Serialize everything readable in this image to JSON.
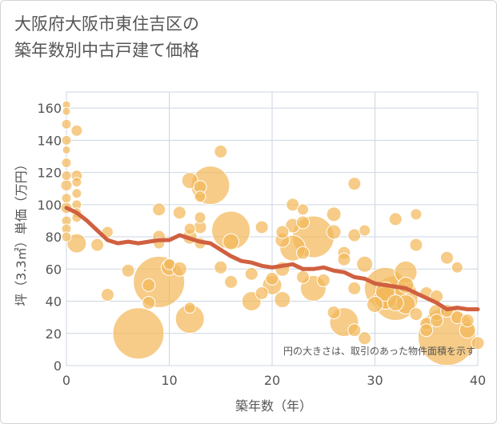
{
  "title": {
    "line1": "大阪府大阪市東住吉区の",
    "line2": "築年数別中古戸建て価格"
  },
  "note": "円の大きさは、取引のあった物件面積を示す",
  "colors": {
    "bubble_fill": "#f2b85a",
    "bubble_stroke": "#ffffff",
    "trend_line": "#d06040",
    "grid": "#cdd6e0",
    "axis_text": "#555555"
  },
  "chart_data": {
    "type": "scatter",
    "xlabel": "築年数（年）",
    "ylabel": "坪（3.3㎡）単価（万円）",
    "xlim": [
      0,
      40
    ],
    "ylim": [
      0,
      170
    ],
    "x_ticks": [
      0,
      10,
      20,
      30,
      40
    ],
    "y_ticks": [
      0,
      20,
      40,
      60,
      80,
      100,
      120,
      140,
      160
    ],
    "grid": true,
    "bubbles": [
      {
        "x": 0,
        "y": 162,
        "s": 5
      },
      {
        "x": 0,
        "y": 158,
        "s": 5
      },
      {
        "x": 0,
        "y": 150,
        "s": 6
      },
      {
        "x": 0,
        "y": 140,
        "s": 6
      },
      {
        "x": 0,
        "y": 134,
        "s": 5
      },
      {
        "x": 0,
        "y": 126,
        "s": 6
      },
      {
        "x": 0,
        "y": 118,
        "s": 6
      },
      {
        "x": 0,
        "y": 112,
        "s": 7
      },
      {
        "x": 0,
        "y": 104,
        "s": 6
      },
      {
        "x": 0,
        "y": 98,
        "s": 7
      },
      {
        "x": 0,
        "y": 90,
        "s": 6
      },
      {
        "x": 0,
        "y": 85,
        "s": 6
      },
      {
        "x": 0,
        "y": 80,
        "s": 6
      },
      {
        "x": 1,
        "y": 146,
        "s": 7
      },
      {
        "x": 1,
        "y": 118,
        "s": 7
      },
      {
        "x": 1,
        "y": 114,
        "s": 6
      },
      {
        "x": 1,
        "y": 107,
        "s": 6
      },
      {
        "x": 1,
        "y": 100,
        "s": 6
      },
      {
        "x": 1,
        "y": 95,
        "s": 6
      },
      {
        "x": 1,
        "y": 92,
        "s": 6
      },
      {
        "x": 1,
        "y": 76,
        "s": 12
      },
      {
        "x": 3,
        "y": 75,
        "s": 8
      },
      {
        "x": 4,
        "y": 83,
        "s": 7
      },
      {
        "x": 4,
        "y": 44,
        "s": 8
      },
      {
        "x": 6,
        "y": 59,
        "s": 8
      },
      {
        "x": 7,
        "y": 20,
        "s": 32
      },
      {
        "x": 8,
        "y": 50,
        "s": 8
      },
      {
        "x": 8,
        "y": 39,
        "s": 8
      },
      {
        "x": 9,
        "y": 97,
        "s": 8
      },
      {
        "x": 9,
        "y": 80,
        "s": 8
      },
      {
        "x": 9,
        "y": 76,
        "s": 7
      },
      {
        "x": 9,
        "y": 52,
        "s": 32
      },
      {
        "x": 10,
        "y": 61,
        "s": 10
      },
      {
        "x": 10,
        "y": 63,
        "s": 7
      },
      {
        "x": 11,
        "y": 95,
        "s": 8
      },
      {
        "x": 11,
        "y": 60,
        "s": 9
      },
      {
        "x": 12,
        "y": 115,
        "s": 10
      },
      {
        "x": 12,
        "y": 85,
        "s": 7
      },
      {
        "x": 12,
        "y": 80,
        "s": 9
      },
      {
        "x": 12,
        "y": 36,
        "s": 7
      },
      {
        "x": 12,
        "y": 29,
        "s": 18
      },
      {
        "x": 13,
        "y": 111,
        "s": 8
      },
      {
        "x": 13,
        "y": 105,
        "s": 7
      },
      {
        "x": 13,
        "y": 92,
        "s": 7
      },
      {
        "x": 13,
        "y": 86,
        "s": 8
      },
      {
        "x": 13,
        "y": 76,
        "s": 7
      },
      {
        "x": 14,
        "y": 112,
        "s": 24
      },
      {
        "x": 15,
        "y": 133,
        "s": 8
      },
      {
        "x": 15,
        "y": 61,
        "s": 8
      },
      {
        "x": 16,
        "y": 84,
        "s": 24
      },
      {
        "x": 16,
        "y": 77,
        "s": 10
      },
      {
        "x": 16,
        "y": 52,
        "s": 8
      },
      {
        "x": 18,
        "y": 57,
        "s": 8
      },
      {
        "x": 18,
        "y": 40,
        "s": 12
      },
      {
        "x": 19,
        "y": 86,
        "s": 8
      },
      {
        "x": 19,
        "y": 45,
        "s": 8
      },
      {
        "x": 20,
        "y": 54,
        "s": 8
      },
      {
        "x": 20,
        "y": 50,
        "s": 12
      },
      {
        "x": 21,
        "y": 83,
        "s": 8
      },
      {
        "x": 21,
        "y": 78,
        "s": 9
      },
      {
        "x": 21,
        "y": 60,
        "s": 9
      },
      {
        "x": 21,
        "y": 41,
        "s": 10
      },
      {
        "x": 22,
        "y": 100,
        "s": 8
      },
      {
        "x": 22,
        "y": 87,
        "s": 9
      },
      {
        "x": 22,
        "y": 73,
        "s": 16
      },
      {
        "x": 23,
        "y": 97,
        "s": 7
      },
      {
        "x": 23,
        "y": 89,
        "s": 8
      },
      {
        "x": 23,
        "y": 70,
        "s": 8
      },
      {
        "x": 23,
        "y": 55,
        "s": 8
      },
      {
        "x": 24,
        "y": 80,
        "s": 26
      },
      {
        "x": 24,
        "y": 48,
        "s": 16
      },
      {
        "x": 25,
        "y": 53,
        "s": 8
      },
      {
        "x": 26,
        "y": 94,
        "s": 9
      },
      {
        "x": 26,
        "y": 83,
        "s": 9
      },
      {
        "x": 26,
        "y": 33,
        "s": 8
      },
      {
        "x": 27,
        "y": 70,
        "s": 8
      },
      {
        "x": 27,
        "y": 66,
        "s": 8
      },
      {
        "x": 27,
        "y": 27,
        "s": 18
      },
      {
        "x": 28,
        "y": 113,
        "s": 8
      },
      {
        "x": 28,
        "y": 81,
        "s": 8
      },
      {
        "x": 28,
        "y": 48,
        "s": 8
      },
      {
        "x": 28,
        "y": 22,
        "s": 8
      },
      {
        "x": 29,
        "y": 84,
        "s": 7
      },
      {
        "x": 29,
        "y": 63,
        "s": 10
      },
      {
        "x": 29,
        "y": 17,
        "s": 8
      },
      {
        "x": 30,
        "y": 38,
        "s": 10
      },
      {
        "x": 31,
        "y": 48,
        "s": 26
      },
      {
        "x": 31,
        "y": 46,
        "s": 12
      },
      {
        "x": 31,
        "y": 42,
        "s": 14
      },
      {
        "x": 32,
        "y": 91,
        "s": 8
      },
      {
        "x": 32,
        "y": 42,
        "s": 28
      },
      {
        "x": 32,
        "y": 39,
        "s": 10
      },
      {
        "x": 33,
        "y": 58,
        "s": 14
      },
      {
        "x": 33,
        "y": 50,
        "s": 10
      },
      {
        "x": 33,
        "y": 38,
        "s": 12
      },
      {
        "x": 34,
        "y": 94,
        "s": 7
      },
      {
        "x": 34,
        "y": 75,
        "s": 8
      },
      {
        "x": 34,
        "y": 32,
        "s": 8
      },
      {
        "x": 35,
        "y": 45,
        "s": 8
      },
      {
        "x": 35,
        "y": 26,
        "s": 8
      },
      {
        "x": 35,
        "y": 22,
        "s": 8
      },
      {
        "x": 36,
        "y": 43,
        "s": 8
      },
      {
        "x": 36,
        "y": 33,
        "s": 10
      },
      {
        "x": 36,
        "y": 28,
        "s": 8
      },
      {
        "x": 37,
        "y": 67,
        "s": 8
      },
      {
        "x": 37,
        "y": 34,
        "s": 8
      },
      {
        "x": 37,
        "y": 18,
        "s": 36
      },
      {
        "x": 38,
        "y": 61,
        "s": 7
      },
      {
        "x": 38,
        "y": 30,
        "s": 8
      },
      {
        "x": 39,
        "y": 28,
        "s": 8
      },
      {
        "x": 39,
        "y": 22,
        "s": 10
      },
      {
        "x": 40,
        "y": 14,
        "s": 8
      }
    ],
    "trend": {
      "x": [
        0,
        1,
        2,
        3,
        4,
        5,
        6,
        7,
        8,
        9,
        10,
        11,
        12,
        13,
        14,
        15,
        16,
        17,
        18,
        19,
        20,
        21,
        22,
        23,
        24,
        25,
        26,
        27,
        28,
        29,
        30,
        31,
        32,
        33,
        34,
        35,
        36,
        37,
        38,
        39,
        40
      ],
      "y": [
        98,
        95,
        90,
        84,
        78,
        76,
        77,
        76,
        77,
        78,
        78,
        81,
        79,
        77,
        76,
        72,
        68,
        65,
        64,
        62,
        61,
        62,
        63,
        60,
        60,
        61,
        59,
        58,
        55,
        54,
        51,
        50,
        49,
        48,
        45,
        42,
        39,
        35,
        36,
        35,
        35
      ]
    }
  }
}
